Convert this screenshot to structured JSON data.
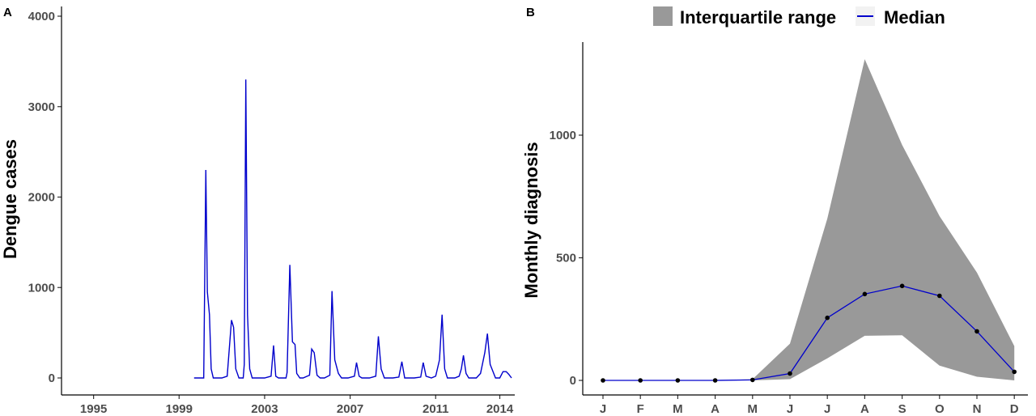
{
  "chart_data": [
    {
      "type": "line",
      "panel_label": "A",
      "title": "",
      "xlabel": "",
      "ylabel": "Dengue cases",
      "xlim": [
        1993.5,
        2014.7
      ],
      "ylim": [
        0,
        4000
      ],
      "x_ticks": [
        1995,
        1999,
        2003,
        2007,
        2011,
        2014
      ],
      "y_ticks": [
        0,
        1000,
        2000,
        3000,
        4000
      ],
      "grid": false,
      "color": "#0000cc",
      "series": [
        {
          "x": [
            1999.7,
            2000.15,
            2000.25,
            2000.32,
            2000.42,
            2000.5,
            2000.6,
            2000.75,
            2001.0,
            2001.25,
            2001.45,
            2001.55,
            2001.65,
            2001.8,
            2002.0,
            2002.05,
            2002.12,
            2002.2,
            2002.3,
            2002.42,
            2002.6,
            2003.0,
            2003.3,
            2003.42,
            2003.52,
            2003.65,
            2004.0,
            2004.05,
            2004.18,
            2004.3,
            2004.42,
            2004.5,
            2004.65,
            2004.8,
            2005.1,
            2005.2,
            2005.32,
            2005.45,
            2005.6,
            2005.8,
            2006.05,
            2006.15,
            2006.28,
            2006.45,
            2006.6,
            2006.9,
            2007.2,
            2007.3,
            2007.42,
            2007.55,
            2007.9,
            2008.2,
            2008.32,
            2008.45,
            2008.6,
            2009.0,
            2009.28,
            2009.42,
            2009.55,
            2010.0,
            2010.3,
            2010.42,
            2010.55,
            2010.8,
            2011.0,
            2011.18,
            2011.3,
            2011.42,
            2011.55,
            2011.9,
            2012.1,
            2012.2,
            2012.3,
            2012.42,
            2012.55,
            2012.9,
            2013.1,
            2013.3,
            2013.42,
            2013.55,
            2013.8,
            2014.0,
            2014.15,
            2014.3,
            2014.42,
            2014.55
          ],
          "y": [
            0,
            0,
            2300,
            950,
            700,
            100,
            0,
            0,
            0,
            20,
            640,
            560,
            100,
            0,
            0,
            150,
            3300,
            700,
            100,
            0,
            0,
            0,
            20,
            360,
            20,
            0,
            0,
            60,
            1250,
            400,
            370,
            50,
            0,
            0,
            30,
            320,
            280,
            30,
            0,
            0,
            30,
            960,
            200,
            50,
            0,
            0,
            20,
            170,
            20,
            0,
            0,
            20,
            460,
            100,
            0,
            0,
            10,
            180,
            0,
            0,
            10,
            170,
            20,
            0,
            20,
            200,
            700,
            100,
            0,
            0,
            20,
            100,
            250,
            50,
            0,
            0,
            50,
            280,
            490,
            150,
            0,
            0,
            70,
            70,
            40,
            0
          ]
        }
      ]
    },
    {
      "type": "line",
      "panel_label": "B",
      "title": "",
      "xlabel": "",
      "ylabel": "Monthly diagnosis",
      "ylim": [
        -30,
        1370
      ],
      "y_ticks": [
        0,
        500,
        1000
      ],
      "grid": false,
      "categories": [
        "J",
        "F",
        "M",
        "A",
        "M",
        "J",
        "J",
        "A",
        "S",
        "O",
        "N",
        "D"
      ],
      "legend": {
        "position": "top",
        "entries": [
          "Interquartile range",
          "Median"
        ]
      },
      "colors": {
        "median": "#0000cc",
        "band": "#999999",
        "points": "#000000"
      },
      "series": [
        {
          "name": "Median",
          "values": [
            0,
            0,
            0,
            0,
            2,
            28,
            255,
            352,
            385,
            345,
            200,
            35
          ]
        }
      ],
      "band": {
        "name": "Interquartile range",
        "lower": [
          0,
          0,
          0,
          0,
          0,
          5,
          90,
          182,
          184,
          60,
          15,
          0
        ],
        "upper": [
          0,
          0,
          0,
          0,
          5,
          150,
          660,
          1310,
          960,
          670,
          440,
          140
        ]
      }
    }
  ]
}
